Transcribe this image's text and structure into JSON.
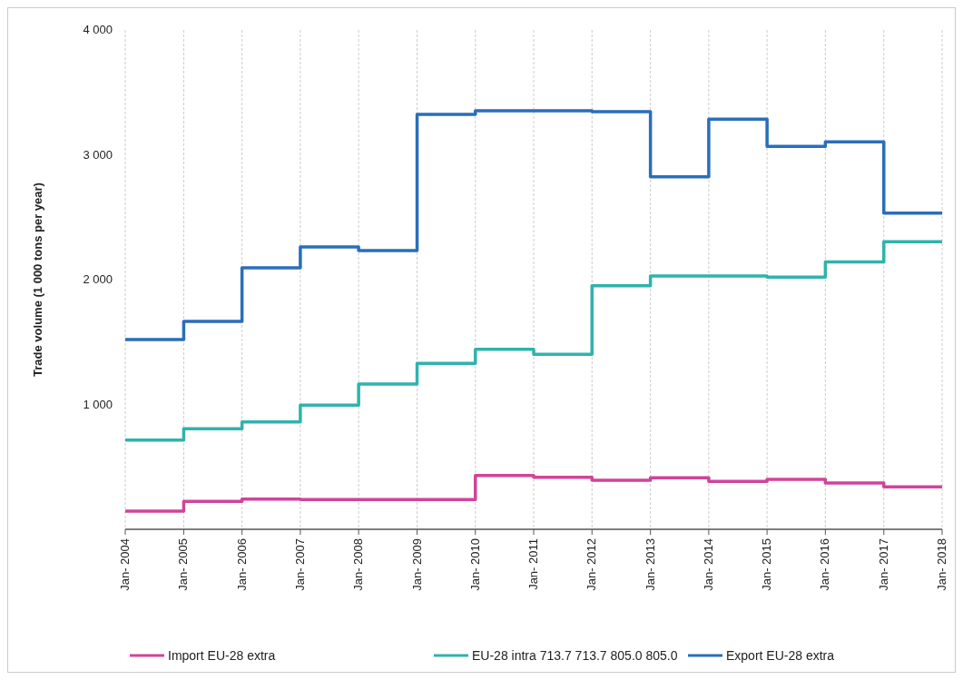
{
  "chart_data": {
    "type": "step",
    "ylabel": "Trade volume (1 000 tons per year)",
    "x": [
      "2004-01",
      "2005-01",
      "2006-01",
      "2007-01",
      "2008-01",
      "2009-01",
      "2010-01",
      "2011-01",
      "2012-01",
      "2013-01",
      "2014-01",
      "2015-01",
      "2016-01",
      "2017-01",
      "2018-01"
    ],
    "series": [
      {
        "name": "Import EU-28 extra",
        "color": "#d0449a",
        "values": [
          145,
          223,
          242,
          238,
          238,
          238,
          431,
          417,
          393,
          412,
          383,
          400,
          371,
          340,
          340
        ]
      },
      {
        "name": "EU-28 intra 713.7  713.7  805.0  805.0",
        "color": "#2fb3ac",
        "values": [
          713.7,
          805.0,
          860,
          994,
          1164,
          1329,
          1442,
          1401,
          1951,
          2029,
          2029,
          2020,
          2141,
          2303,
          2303
        ]
      },
      {
        "name": "Export EU-28 extra",
        "color": "#2a6ebb",
        "values": [
          1520,
          1665,
          2095,
          2262,
          2233,
          3324,
          3353,
          3353,
          3345,
          2824,
          3285,
          3067,
          3103,
          2533,
          2533
        ]
      }
    ],
    "ylim": [
      0,
      4000
    ],
    "yticks": [
      {
        "value": 1000,
        "label": "1 000"
      },
      {
        "value": 2000,
        "label": "2 000"
      },
      {
        "value": 3000,
        "label": "3 000"
      },
      {
        "value": 4000,
        "label": "4 000"
      }
    ],
    "xlim": [
      "2004-01",
      "2018-01"
    ],
    "xticks": [
      {
        "value": "2004-01",
        "label": "Jan- 2004"
      },
      {
        "value": "2005-01",
        "label": "Jan- 2005"
      },
      {
        "value": "2006-01",
        "label": "Jan- 2006"
      },
      {
        "value": "2007-01",
        "label": "Jan- 2007"
      },
      {
        "value": "2008-01",
        "label": "Jan- 2008"
      },
      {
        "value": "2009-01",
        "label": "Jan- 2009"
      },
      {
        "value": "2010-01",
        "label": "Jan- 2010"
      },
      {
        "value": "2011-01",
        "label": "Jan- 2011"
      },
      {
        "value": "2012-01",
        "label": "Jan- 2012"
      },
      {
        "value": "2013-01",
        "label": "Jan- 2013"
      },
      {
        "value": "2014-01",
        "label": "Jan- 2014"
      },
      {
        "value": "2015-01",
        "label": "Jan- 2015"
      },
      {
        "value": "2016-01",
        "label": "Jan- 2016"
      },
      {
        "value": "2017-01",
        "label": "Jan- 2017"
      },
      {
        "value": "2018-01",
        "label": "Jan- 2018"
      }
    ],
    "grid": "x",
    "legend": "bottom"
  }
}
